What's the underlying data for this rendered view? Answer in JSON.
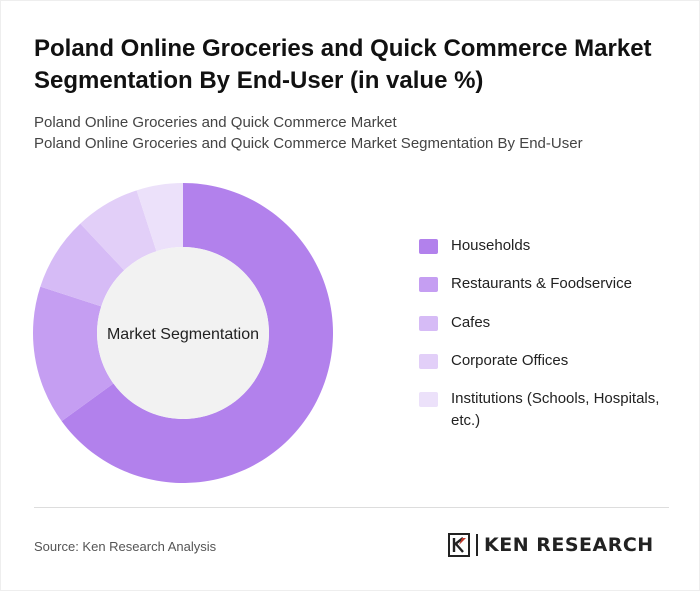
{
  "title": "Poland Online Groceries and Quick Commerce Market Segmentation By End-User (in value %)",
  "subtitle_line1": "Poland Online Groceries and Quick Commerce Market",
  "subtitle_line2": "Poland Online Groceries and Quick Commerce Market Segmentation By End-User",
  "source": "Source: Ken Research Analysis",
  "logo_text": "KEN RESEARCH",
  "chart_data": {
    "type": "pie",
    "donut": true,
    "center_label": "Market Segmentation",
    "categories": [
      "Households",
      "Restaurants & Foodservice",
      "Cafes",
      "Corporate Offices",
      "Institutions (Schools, Hospitals, etc.)"
    ],
    "values": [
      65,
      15,
      8,
      7,
      5
    ],
    "colors": [
      "#b281ec",
      "#c59ef2",
      "#d6bbf6",
      "#e2cff8",
      "#ece1fa"
    ],
    "legend_position": "right"
  }
}
